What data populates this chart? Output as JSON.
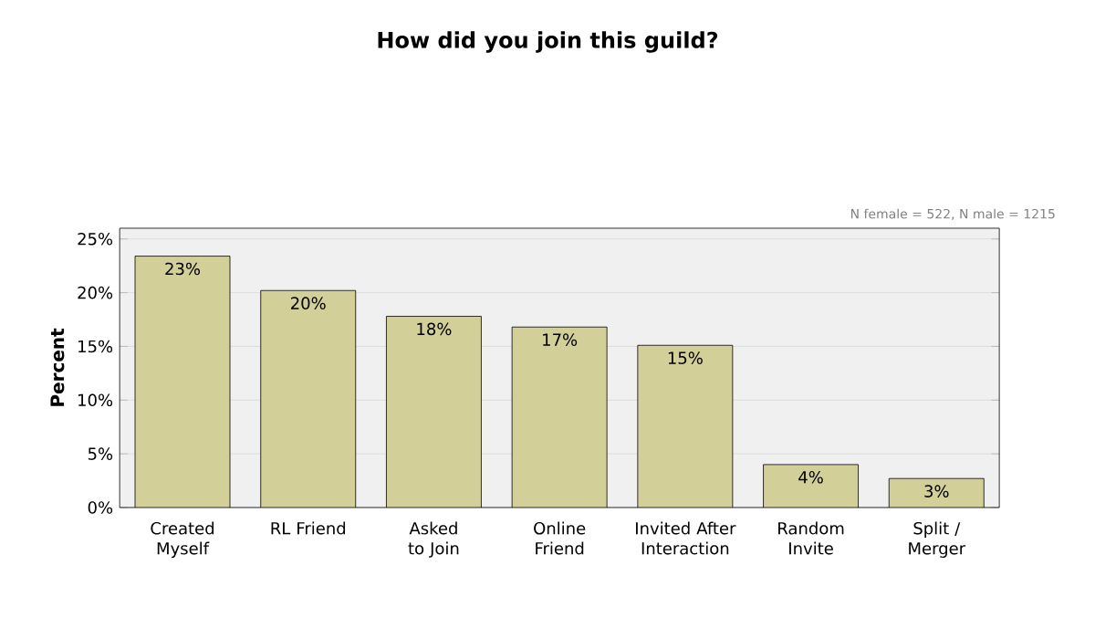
{
  "chart_data": {
    "type": "bar",
    "title": "How did you join this guild?",
    "ylabel": "Percent",
    "annotations": [
      "N female = 522, N male = 1215"
    ],
    "categories": [
      "Created Myself",
      "RL Friend",
      "Asked to Join",
      "Online Friend",
      "Invited After Interaction",
      "Random Invite",
      "Split / Merger"
    ],
    "values": [
      23.4,
      20.2,
      17.8,
      16.8,
      15.1,
      4.0,
      2.7
    ],
    "value_labels": [
      "23%",
      "20%",
      "18%",
      "17%",
      "15%",
      "4%",
      "3%"
    ],
    "color": "#d3cf98",
    "ylim": [
      0,
      26
    ],
    "yticks": [
      {
        "value": 0,
        "label": "0%"
      },
      {
        "value": 5,
        "label": "5%"
      },
      {
        "value": 10,
        "label": "10%"
      },
      {
        "value": 15,
        "label": "15%"
      },
      {
        "value": 20,
        "label": "20%"
      },
      {
        "value": 25,
        "label": "25%"
      }
    ],
    "grid": "y"
  }
}
